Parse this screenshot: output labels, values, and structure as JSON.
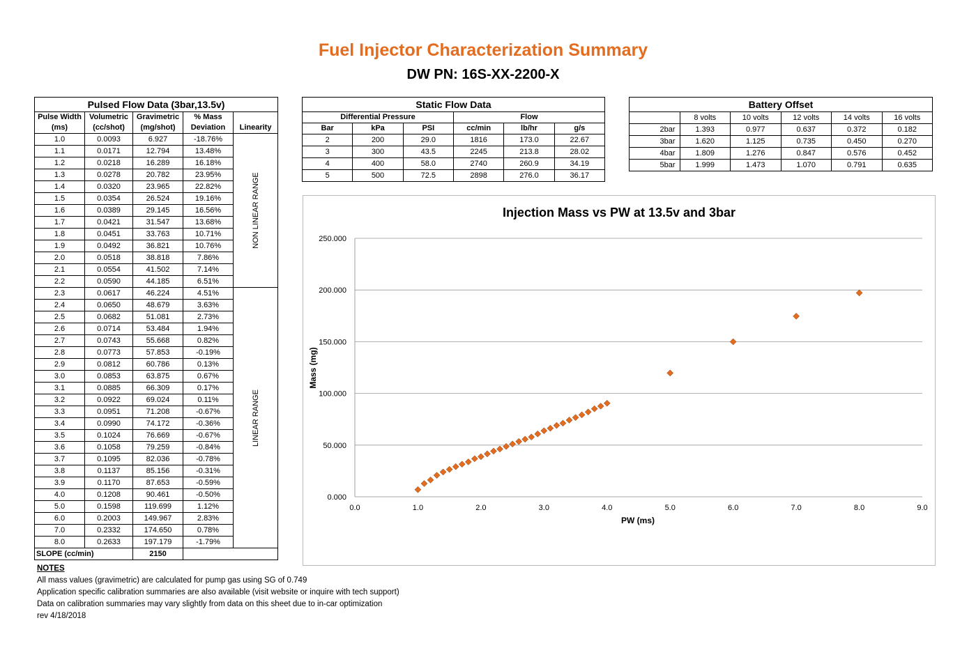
{
  "header": {
    "title": "Fuel Injector Characterization Summary",
    "subtitle": "DW PN: 16S-XX-2200-X"
  },
  "pulsed": {
    "caption": "Pulsed Flow Data (3bar,13.5v)",
    "headers_top": [
      "Pulse Width",
      "Volumetric",
      "Gravimetric",
      "% Mass",
      ""
    ],
    "headers_bottom": [
      "(ms)",
      "(cc/shot)",
      "(mg/shot)",
      "Deviation",
      "Linearity"
    ],
    "nonlinear_label": "NON LINEAR RANGE",
    "linear_label": "LINEAR RANGE",
    "rows": [
      [
        "1.0",
        "0.0093",
        "6.927",
        "-18.76%"
      ],
      [
        "1.1",
        "0.0171",
        "12.794",
        "13.48%"
      ],
      [
        "1.2",
        "0.0218",
        "16.289",
        "16.18%"
      ],
      [
        "1.3",
        "0.0278",
        "20.782",
        "23.95%"
      ],
      [
        "1.4",
        "0.0320",
        "23.965",
        "22.82%"
      ],
      [
        "1.5",
        "0.0354",
        "26.524",
        "19.16%"
      ],
      [
        "1.6",
        "0.0389",
        "29.145",
        "16.56%"
      ],
      [
        "1.7",
        "0.0421",
        "31.547",
        "13.68%"
      ],
      [
        "1.8",
        "0.0451",
        "33.763",
        "10.71%"
      ],
      [
        "1.9",
        "0.0492",
        "36.821",
        "10.76%"
      ],
      [
        "2.0",
        "0.0518",
        "38.818",
        "7.86%"
      ],
      [
        "2.1",
        "0.0554",
        "41.502",
        "7.14%"
      ],
      [
        "2.2",
        "0.0590",
        "44.185",
        "6.51%"
      ],
      [
        "2.3",
        "0.0617",
        "46.224",
        "4.51%"
      ],
      [
        "2.4",
        "0.0650",
        "48.679",
        "3.63%"
      ],
      [
        "2.5",
        "0.0682",
        "51.081",
        "2.73%"
      ],
      [
        "2.6",
        "0.0714",
        "53.484",
        "1.94%"
      ],
      [
        "2.7",
        "0.0743",
        "55.668",
        "0.82%"
      ],
      [
        "2.8",
        "0.0773",
        "57.853",
        "-0.19%"
      ],
      [
        "2.9",
        "0.0812",
        "60.786",
        "0.13%"
      ],
      [
        "3.0",
        "0.0853",
        "63.875",
        "0.67%"
      ],
      [
        "3.1",
        "0.0885",
        "66.309",
        "0.17%"
      ],
      [
        "3.2",
        "0.0922",
        "69.024",
        "0.11%"
      ],
      [
        "3.3",
        "0.0951",
        "71.208",
        "-0.67%"
      ],
      [
        "3.4",
        "0.0990",
        "74.172",
        "-0.36%"
      ],
      [
        "3.5",
        "0.1024",
        "76.669",
        "-0.67%"
      ],
      [
        "3.6",
        "0.1058",
        "79.259",
        "-0.84%"
      ],
      [
        "3.7",
        "0.1095",
        "82.036",
        "-0.78%"
      ],
      [
        "3.8",
        "0.1137",
        "85.156",
        "-0.31%"
      ],
      [
        "3.9",
        "0.1170",
        "87.653",
        "-0.59%"
      ],
      [
        "4.0",
        "0.1208",
        "90.461",
        "-0.50%"
      ],
      [
        "5.0",
        "0.1598",
        "119.699",
        "1.12%"
      ],
      [
        "6.0",
        "0.2003",
        "149.967",
        "2.83%"
      ],
      [
        "7.0",
        "0.2332",
        "174.650",
        "0.78%"
      ],
      [
        "8.0",
        "0.2633",
        "197.179",
        "-1.79%"
      ]
    ],
    "slope_label": "SLOPE (cc/min)",
    "slope_value": "2150"
  },
  "static": {
    "caption": "Static Flow Data",
    "group_dp": "Differential Pressure",
    "group_flow": "Flow",
    "headers": [
      "Bar",
      "kPa",
      "PSI",
      "cc/min",
      "lb/hr",
      "g/s"
    ],
    "rows": [
      [
        "2",
        "200",
        "29.0",
        "1816",
        "173.0",
        "22.67"
      ],
      [
        "3",
        "300",
        "43.5",
        "2245",
        "213.8",
        "28.02"
      ],
      [
        "4",
        "400",
        "58.0",
        "2740",
        "260.9",
        "34.19"
      ],
      [
        "5",
        "500",
        "72.5",
        "2898",
        "276.0",
        "36.17"
      ]
    ]
  },
  "battery": {
    "caption": "Battery Offset",
    "headers": [
      "",
      "8 volts",
      "10 volts",
      "12 volts",
      "14 volts",
      "16 volts"
    ],
    "rows": [
      [
        "2bar",
        "1.393",
        "0.977",
        "0.637",
        "0.372",
        "0.182"
      ],
      [
        "3bar",
        "1.620",
        "1.125",
        "0.735",
        "0.450",
        "0.270"
      ],
      [
        "4bar",
        "1.809",
        "1.276",
        "0.847",
        "0.576",
        "0.452"
      ],
      [
        "5bar",
        "1.999",
        "1.473",
        "1.070",
        "0.791",
        "0.635"
      ]
    ]
  },
  "notes": {
    "heading": "NOTES",
    "lines": [
      "All mass values (gravimetric) are calculated for pump gas using SG of 0.749",
      "Application specific calibration summaries are also available (visit website or inquire with tech support)",
      "Data on calibration summaries may vary slightly from data on this sheet due to in-car optimization",
      "rev 4/18/2018"
    ]
  },
  "chart_data": {
    "type": "scatter",
    "title": "Injection Mass vs PW at 13.5v and 3bar",
    "xlabel": "PW (ms)",
    "ylabel": "Mass (mg)",
    "xlim": [
      0,
      9
    ],
    "ylim": [
      0,
      250
    ],
    "xticks": [
      "0.0",
      "1.0",
      "2.0",
      "3.0",
      "4.0",
      "5.0",
      "6.0",
      "7.0",
      "8.0",
      "9.0"
    ],
    "yticks": [
      "0.000",
      "50.000",
      "100.000",
      "150.000",
      "200.000",
      "250.000"
    ],
    "grid": "horizontal",
    "marker_color": "#e46c1f",
    "x": [
      1.0,
      1.1,
      1.2,
      1.3,
      1.4,
      1.5,
      1.6,
      1.7,
      1.8,
      1.9,
      2.0,
      2.1,
      2.2,
      2.3,
      2.4,
      2.5,
      2.6,
      2.7,
      2.8,
      2.9,
      3.0,
      3.1,
      3.2,
      3.3,
      3.4,
      3.5,
      3.6,
      3.7,
      3.8,
      3.9,
      4.0,
      5.0,
      6.0,
      7.0,
      8.0
    ],
    "y": [
      6.927,
      12.794,
      16.289,
      20.782,
      23.965,
      26.524,
      29.145,
      31.547,
      33.763,
      36.821,
      38.818,
      41.502,
      44.185,
      46.224,
      48.679,
      51.081,
      53.484,
      55.668,
      57.853,
      60.786,
      63.875,
      66.309,
      69.024,
      71.208,
      74.172,
      76.669,
      79.259,
      82.036,
      85.156,
      87.653,
      90.461,
      119.699,
      149.967,
      174.65,
      197.179
    ]
  }
}
